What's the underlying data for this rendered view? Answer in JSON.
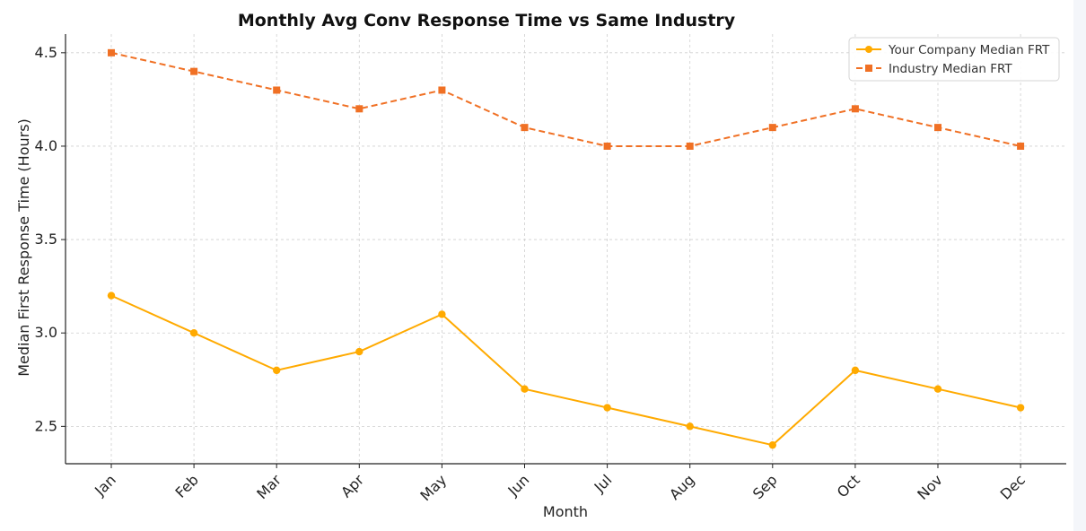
{
  "chart_data": {
    "type": "line",
    "title": "Monthly Avg Conv Response Time vs Same Industry",
    "xlabel": "Month",
    "ylabel": "Median First Response Time (Hours)",
    "categories": [
      "Jan",
      "Feb",
      "Mar",
      "Apr",
      "May",
      "Jun",
      "Jul",
      "Aug",
      "Sep",
      "Oct",
      "Nov",
      "Dec"
    ],
    "series": [
      {
        "name": "Your Company Median FRT",
        "values": [
          3.2,
          3.0,
          2.8,
          2.9,
          3.1,
          2.7,
          2.6,
          2.5,
          2.4,
          2.8,
          2.7,
          2.6
        ],
        "color": "#FFAA00",
        "line_style": "solid",
        "marker": "circle"
      },
      {
        "name": "Industry Median FRT",
        "values": [
          4.5,
          4.4,
          4.3,
          4.2,
          4.3,
          4.1,
          4.0,
          4.0,
          4.1,
          4.2,
          4.1,
          4.0
        ],
        "color": "#F07024",
        "line_style": "dashed",
        "marker": "square"
      }
    ],
    "ylim": [
      2.3,
      4.6
    ],
    "yticks": [
      "2.5",
      "3.0",
      "3.5",
      "4.0",
      "4.5"
    ],
    "yticks_values": [
      2.5,
      3.0,
      3.5,
      4.0,
      4.5
    ],
    "grid": true,
    "legend_position": "top-right"
  }
}
